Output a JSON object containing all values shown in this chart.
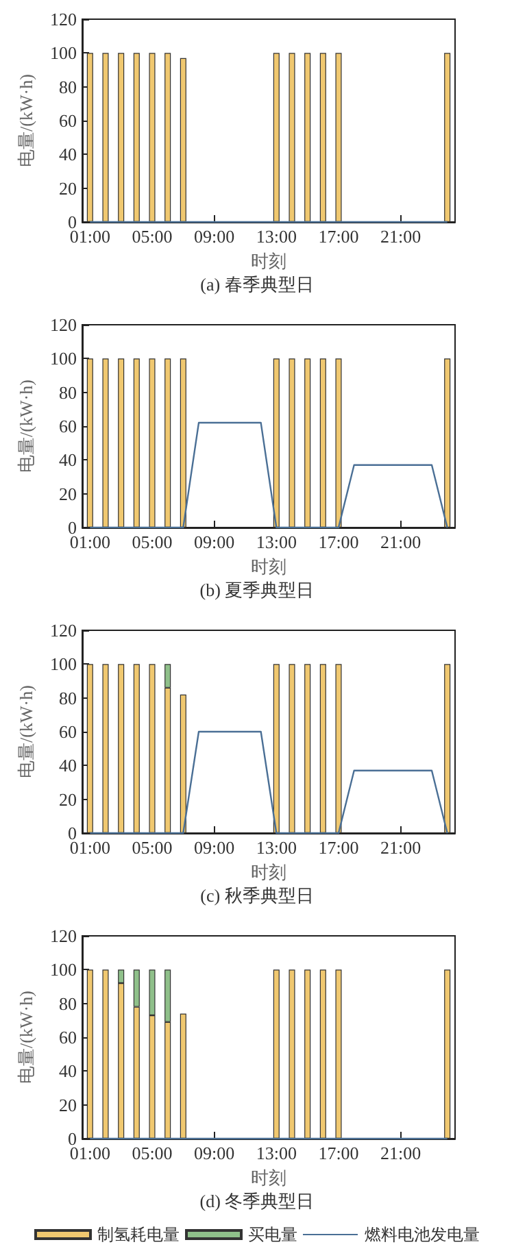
{
  "chart_data": [
    {
      "type": "bar",
      "title": "(a) 春季典型日",
      "xlabel": "时刻",
      "ylabel": "电量/(kW·h)",
      "categories": [
        "01:00",
        null,
        null,
        null,
        "05:00",
        null,
        null,
        null,
        "09:00",
        null,
        null,
        null,
        "13:00",
        null,
        null,
        null,
        "17:00",
        null,
        null,
        null,
        "21:00",
        null,
        null,
        null
      ],
      "stacked": true,
      "ylim": [
        0,
        120
      ],
      "yticks": [
        0,
        20,
        40,
        60,
        80,
        100,
        120
      ],
      "grid": false,
      "legend": false,
      "series": [
        {
          "color": "#f0c870",
          "values": [
            100,
            100,
            100,
            100,
            100,
            100,
            97,
            null,
            null,
            null,
            null,
            null,
            100,
            100,
            100,
            100,
            100,
            null,
            null,
            null,
            null,
            null,
            null,
            100
          ]
        },
        {
          "type": "line",
          "color": "#4a6f95",
          "marker": "none",
          "values": [
            0,
            0,
            0,
            0,
            0,
            0,
            0,
            0,
            0,
            0,
            0,
            0,
            0,
            0,
            0,
            0,
            0,
            0,
            0,
            0,
            0,
            0,
            0,
            0
          ]
        }
      ]
    },
    {
      "type": "bar",
      "title": "(b) 夏季典型日",
      "xlabel": "时刻",
      "ylabel": "电量/(kW·h)",
      "categories": [
        "01:00",
        null,
        null,
        null,
        "05:00",
        null,
        null,
        null,
        "09:00",
        null,
        null,
        null,
        "13:00",
        null,
        null,
        null,
        "17:00",
        null,
        null,
        null,
        "21:00",
        null,
        null,
        null
      ],
      "stacked": true,
      "ylim": [
        0,
        120
      ],
      "yticks": [
        0,
        20,
        40,
        60,
        80,
        100,
        120
      ],
      "grid": false,
      "legend": false,
      "series": [
        {
          "color": "#f0c870",
          "values": [
            100,
            100,
            100,
            100,
            100,
            100,
            100,
            null,
            null,
            null,
            null,
            null,
            100,
            100,
            100,
            100,
            100,
            null,
            null,
            null,
            null,
            null,
            null,
            100
          ]
        },
        {
          "type": "line",
          "color": "#4a6f95",
          "marker": "none",
          "values": [
            0,
            0,
            0,
            0,
            0,
            0,
            0,
            62,
            62,
            62,
            62,
            62,
            0,
            0,
            0,
            0,
            0,
            37,
            37,
            37,
            37,
            37,
            37,
            0
          ]
        }
      ]
    },
    {
      "type": "bar",
      "title": "(c) 秋季典型日",
      "xlabel": "时刻",
      "ylabel": "电量/(kW·h)",
      "categories": [
        "01:00",
        null,
        null,
        null,
        "05:00",
        null,
        null,
        null,
        "09:00",
        null,
        null,
        null,
        "13:00",
        null,
        null,
        null,
        "17:00",
        null,
        null,
        null,
        "21:00",
        null,
        null,
        null
      ],
      "stacked": true,
      "ylim": [
        0,
        120
      ],
      "yticks": [
        0,
        20,
        40,
        60,
        80,
        100,
        120
      ],
      "grid": false,
      "legend": false,
      "series": [
        {
          "color": "#f0c870",
          "values": [
            100,
            100,
            100,
            100,
            100,
            86,
            82,
            null,
            null,
            null,
            null,
            null,
            100,
            100,
            100,
            100,
            100,
            null,
            null,
            null,
            null,
            null,
            null,
            100
          ]
        },
        {
          "color": "#8fc08a",
          "values": [
            null,
            null,
            null,
            null,
            null,
            14,
            null,
            null,
            null,
            null,
            null,
            null,
            null,
            null,
            null,
            null,
            null,
            null,
            null,
            null,
            null,
            null,
            null,
            null
          ]
        },
        {
          "type": "line",
          "color": "#4a6f95",
          "marker": "none",
          "values": [
            0,
            0,
            0,
            0,
            0,
            0,
            0,
            60,
            60,
            60,
            60,
            60,
            0,
            0,
            0,
            0,
            0,
            37,
            37,
            37,
            37,
            37,
            37,
            0
          ]
        }
      ]
    },
    {
      "type": "bar",
      "title": "(d) 冬季典型日",
      "xlabel": "时刻",
      "ylabel": "电量/(kW·h)",
      "categories": [
        "01:00",
        null,
        null,
        null,
        "05:00",
        null,
        null,
        null,
        "09:00",
        null,
        null,
        null,
        "13:00",
        null,
        null,
        null,
        "17:00",
        null,
        null,
        null,
        "21:00",
        null,
        null,
        null
      ],
      "stacked": true,
      "ylim": [
        0,
        120
      ],
      "yticks": [
        0,
        20,
        40,
        60,
        80,
        100,
        120
      ],
      "grid": false,
      "legend": "bottom",
      "series": [
        {
          "name": "制氢耗电量",
          "color": "#f0c870",
          "values": [
            100,
            100,
            92,
            78,
            73,
            69,
            74,
            null,
            null,
            null,
            null,
            null,
            100,
            100,
            100,
            100,
            100,
            null,
            null,
            null,
            null,
            null,
            null,
            100
          ]
        },
        {
          "name": "买电量",
          "color": "#8fc08a",
          "values": [
            null,
            null,
            8,
            22,
            27,
            31,
            null,
            null,
            null,
            null,
            null,
            null,
            null,
            null,
            null,
            null,
            null,
            null,
            null,
            null,
            null,
            null,
            null,
            null
          ]
        },
        {
          "name": "燃料电池发电量",
          "type": "line",
          "color": "#4a6f95",
          "marker": "none",
          "values": [
            0,
            0,
            0,
            0,
            0,
            0,
            0,
            0,
            0,
            0,
            0,
            0,
            0,
            0,
            0,
            0,
            0,
            0,
            0,
            0,
            0,
            0,
            0,
            0
          ]
        }
      ]
    }
  ]
}
